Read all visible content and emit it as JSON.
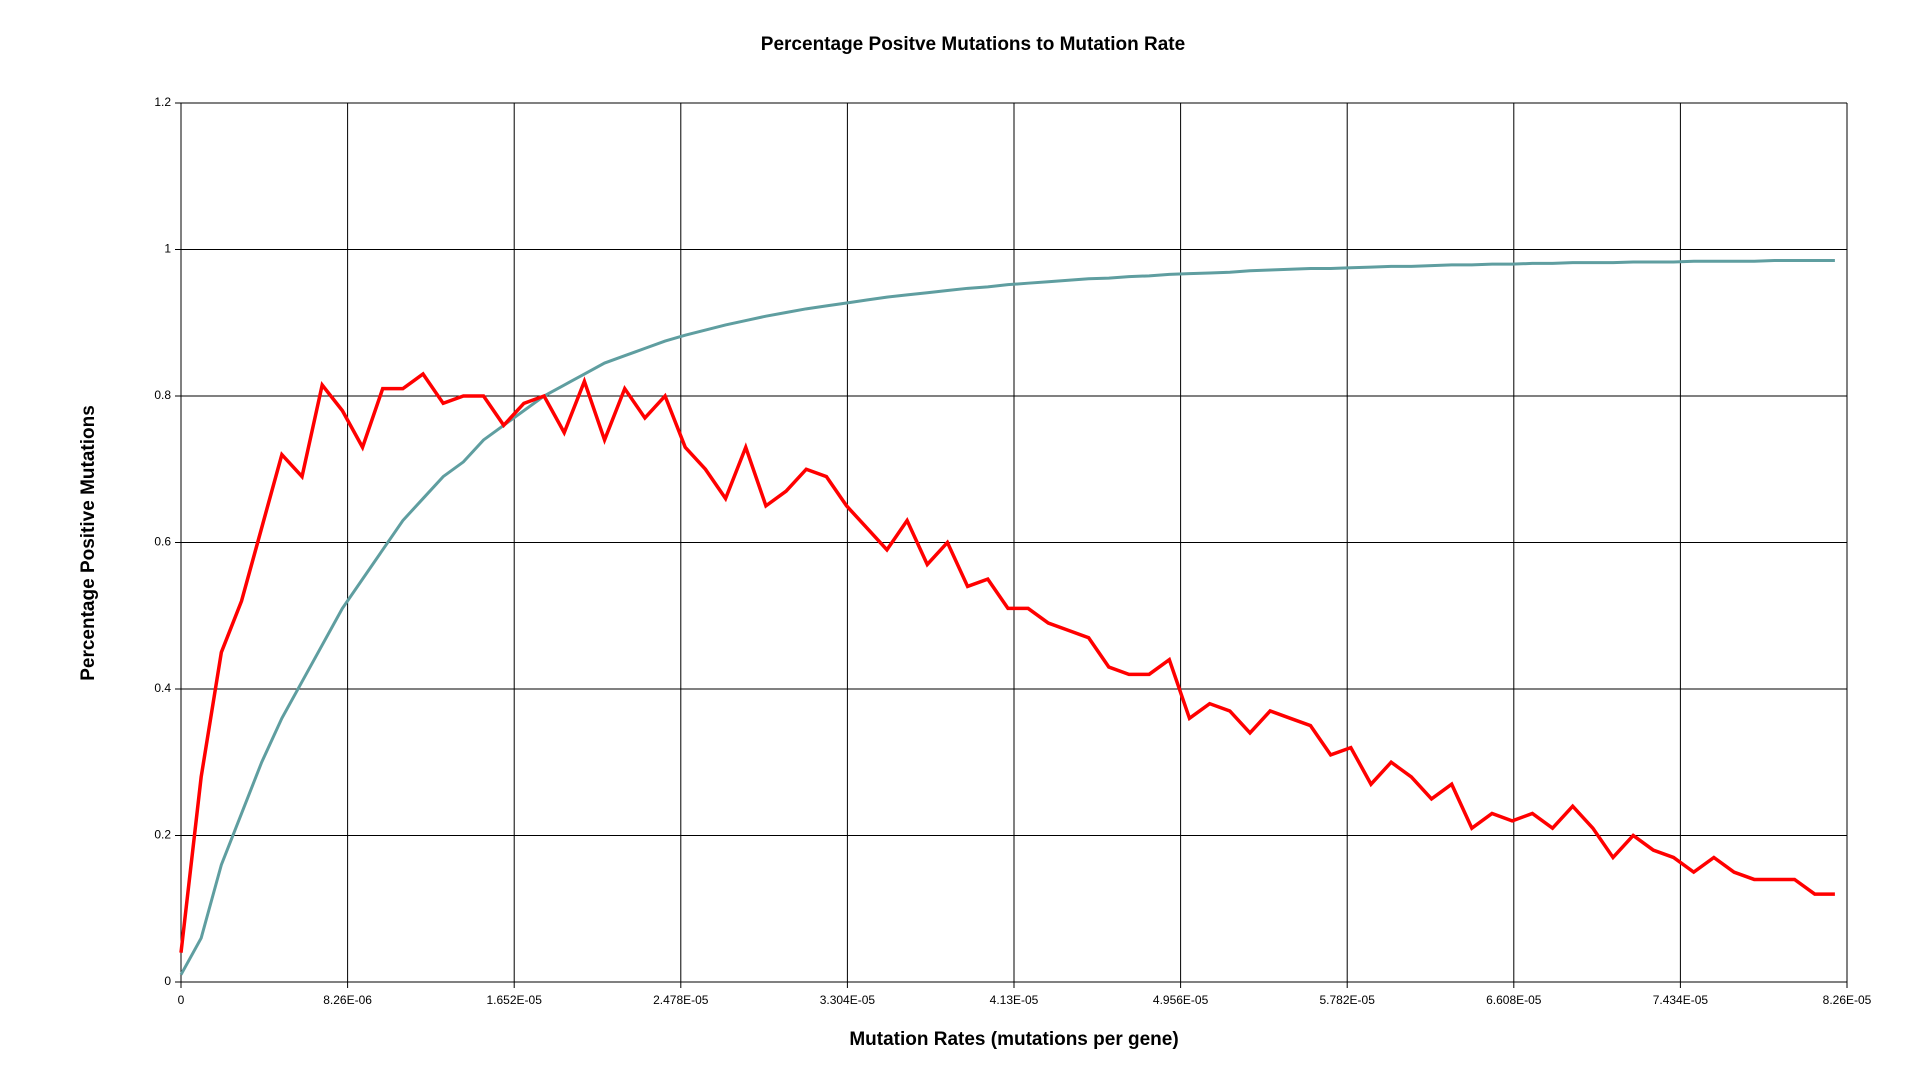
{
  "chart_data": {
    "type": "line",
    "title": "Percentage Positve Mutations to Mutation Rate",
    "x_label": "Mutation Rates (mutations per gene)",
    "y_label": "Percentage Positive Mutations",
    "x": [
      0,
      1e-06,
      2e-06,
      3e-06,
      4e-06,
      5e-06,
      6e-06,
      7e-06,
      8e-06,
      9e-06,
      1e-05,
      1.1e-05,
      1.2e-05,
      1.3e-05,
      1.4e-05,
      1.5e-05,
      1.6e-05,
      1.7e-05,
      1.8e-05,
      1.9e-05,
      2e-05,
      2.1e-05,
      2.2e-05,
      2.3e-05,
      2.4e-05,
      2.5e-05,
      2.6e-05,
      2.7e-05,
      2.8e-05,
      2.9e-05,
      3e-05,
      3.1e-05,
      3.2e-05,
      3.3e-05,
      3.4e-05,
      3.5e-05,
      3.6e-05,
      3.7e-05,
      3.8e-05,
      3.9e-05,
      4e-05,
      4.1e-05,
      4.2e-05,
      4.3e-05,
      4.4e-05,
      4.5e-05,
      4.6e-05,
      4.7e-05,
      4.8e-05,
      4.9e-05,
      5e-05,
      5.1e-05,
      5.2e-05,
      5.3e-05,
      5.4e-05,
      5.5e-05,
      5.6e-05,
      5.7e-05,
      5.8e-05,
      5.9e-05,
      6e-05,
      6.1e-05,
      6.2e-05,
      6.3e-05,
      6.4e-05,
      6.5e-05,
      6.6e-05,
      6.7e-05,
      6.8e-05,
      6.9e-05,
      7e-05,
      7.1e-05,
      7.2e-05,
      7.3e-05,
      7.4e-05,
      7.5e-05,
      7.6e-05,
      7.7e-05,
      7.8e-05,
      7.9e-05,
      8e-05,
      8.1e-05,
      8.2e-05
    ],
    "series": [
      {
        "color": "#5f9ea0",
        "values": [
          0.01,
          0.06,
          0.16,
          0.23,
          0.3,
          0.36,
          0.41,
          0.46,
          0.51,
          0.55,
          0.59,
          0.63,
          0.66,
          0.69,
          0.71,
          0.74,
          0.76,
          0.78,
          0.8,
          0.815,
          0.83,
          0.845,
          0.855,
          0.865,
          0.875,
          0.883,
          0.89,
          0.897,
          0.903,
          0.909,
          0.914,
          0.919,
          0.923,
          0.927,
          0.931,
          0.935,
          0.938,
          0.941,
          0.944,
          0.947,
          0.949,
          0.952,
          0.954,
          0.956,
          0.958,
          0.96,
          0.961,
          0.963,
          0.964,
          0.966,
          0.967,
          0.968,
          0.969,
          0.971,
          0.972,
          0.973,
          0.974,
          0.974,
          0.975,
          0.976,
          0.977,
          0.977,
          0.978,
          0.979,
          0.979,
          0.98,
          0.98,
          0.981,
          0.981,
          0.982,
          0.982,
          0.982,
          0.983,
          0.983,
          0.983,
          0.984,
          0.984,
          0.984,
          0.984,
          0.985,
          0.985,
          0.985,
          0.985
        ]
      },
      {
        "color": "#ff0000",
        "values": [
          0.04,
          0.28,
          0.45,
          0.52,
          0.62,
          0.72,
          0.69,
          0.815,
          0.78,
          0.73,
          0.81,
          0.81,
          0.83,
          0.79,
          0.8,
          0.8,
          0.76,
          0.79,
          0.8,
          0.75,
          0.82,
          0.74,
          0.81,
          0.77,
          0.8,
          0.73,
          0.7,
          0.66,
          0.73,
          0.65,
          0.67,
          0.7,
          0.69,
          0.65,
          0.62,
          0.59,
          0.63,
          0.57,
          0.6,
          0.54,
          0.55,
          0.51,
          0.51,
          0.49,
          0.48,
          0.47,
          0.43,
          0.42,
          0.42,
          0.44,
          0.36,
          0.38,
          0.37,
          0.34,
          0.37,
          0.36,
          0.35,
          0.31,
          0.32,
          0.27,
          0.3,
          0.28,
          0.25,
          0.27,
          0.21,
          0.23,
          0.22,
          0.23,
          0.21,
          0.24,
          0.21,
          0.17,
          0.2,
          0.18,
          0.17,
          0.15,
          0.17,
          0.15,
          0.14,
          0.14,
          0.14,
          0.12,
          0.12
        ]
      }
    ],
    "xlim": [
      0,
      8.26e-05
    ],
    "ylim": [
      0,
      1.2
    ],
    "xticks": [
      0,
      {
        "value": 8.26e-06,
        "label": "8.26E-06"
      },
      {
        "value": 1.652e-05,
        "label": "1.652E-05"
      },
      {
        "value": 2.478e-05,
        "label": "2.478E-05"
      },
      {
        "value": 3.304e-05,
        "label": "3.304E-05"
      },
      {
        "value": 4.13e-05,
        "label": "4.13E-05"
      },
      {
        "value": 4.956e-05,
        "label": "4.956E-05"
      },
      {
        "value": 5.782e-05,
        "label": "5.782E-05"
      },
      {
        "value": 6.608e-05,
        "label": "6.608E-05"
      },
      {
        "value": 7.434e-05,
        "label": "7.434E-05"
      },
      {
        "value": 8.26e-05,
        "label": "8.26E-05"
      }
    ],
    "yticks": [
      0,
      0.2,
      0.4,
      0.6,
      0.8,
      1,
      1.2
    ],
    "grid": true
  }
}
